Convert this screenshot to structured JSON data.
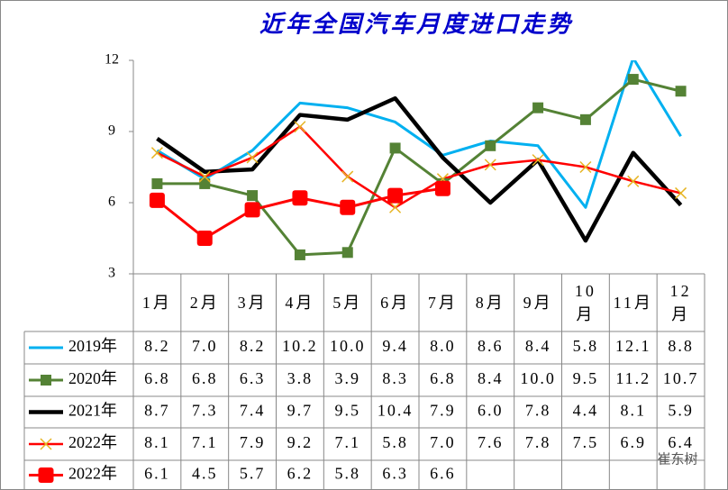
{
  "chart_data": {
    "type": "line",
    "title": "近年全国汽车月度进口走势",
    "categories": [
      "1月",
      "2月",
      "3月",
      "4月",
      "5月",
      "6月",
      "7月",
      "8月",
      "9月",
      "10月",
      "11月",
      "12月"
    ],
    "ylim": [
      3,
      12
    ],
    "yticks": [
      3,
      6,
      9,
      12
    ],
    "watermark": "崔东树",
    "series": [
      {
        "name": "2019年",
        "color": "#00b0f0",
        "width": 3,
        "marker": "none",
        "values": [
          8.2,
          7.0,
          8.2,
          10.2,
          10.0,
          9.4,
          8.0,
          8.6,
          8.4,
          5.8,
          12.1,
          8.8
        ],
        "value_labels": [
          "8.2",
          "7.0",
          "8.2",
          "10.2",
          "10.0",
          "9.4",
          "8.0",
          "8.6",
          "8.4",
          "5.8",
          "12.1",
          "8.8"
        ]
      },
      {
        "name": "2020年",
        "color": "#548235",
        "width": 3,
        "marker": "square",
        "marker_color": "#548235",
        "values": [
          6.8,
          6.8,
          6.3,
          3.8,
          3.9,
          8.3,
          6.8,
          8.4,
          10.0,
          9.5,
          11.2,
          10.7
        ],
        "value_labels": [
          "6.8",
          "6.8",
          "6.3",
          "3.8",
          "3.9",
          "8.3",
          "6.8",
          "8.4",
          "10.0",
          "9.5",
          "11.2",
          "10.7"
        ]
      },
      {
        "name": "2021年",
        "color": "#000000",
        "width": 4.5,
        "marker": "none",
        "values": [
          8.7,
          7.3,
          7.4,
          9.7,
          9.5,
          10.4,
          7.9,
          6.0,
          7.8,
          4.4,
          8.1,
          5.9
        ],
        "value_labels": [
          "8.7",
          "7.3",
          "7.4",
          "9.7",
          "9.5",
          "10.4",
          "7.9",
          "6.0",
          "7.8",
          "4.4",
          "8.1",
          "5.9"
        ]
      },
      {
        "name": "2022年",
        "color": "#ff0000",
        "width": 2.5,
        "marker": "x",
        "marker_color": "#e6b422",
        "values": [
          8.1,
          7.1,
          7.9,
          9.2,
          7.1,
          5.8,
          7.0,
          7.6,
          7.8,
          7.5,
          6.9,
          6.4
        ],
        "value_labels": [
          "8.1",
          "7.1",
          "7.9",
          "9.2",
          "7.1",
          "5.8",
          "7.0",
          "7.6",
          "7.8",
          "7.5",
          "6.9",
          "6.4"
        ]
      },
      {
        "name": "2022年",
        "color": "#ff0000",
        "width": 3,
        "marker": "bigsquare",
        "marker_color": "#ff0000",
        "values": [
          6.1,
          4.5,
          5.7,
          6.2,
          5.8,
          6.3,
          6.6,
          null,
          null,
          null,
          null,
          null
        ],
        "value_labels": [
          "6.1",
          "4.5",
          "5.7",
          "6.2",
          "5.8",
          "6.3",
          "6.6",
          null,
          null,
          null,
          null,
          null
        ]
      }
    ]
  }
}
